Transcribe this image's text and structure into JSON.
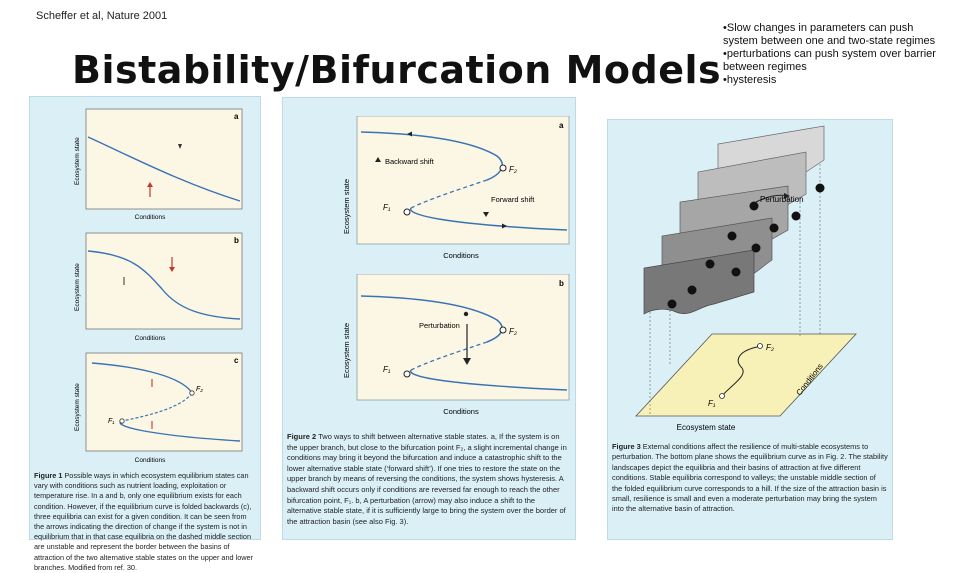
{
  "citation": "Scheffer et al, Nature 2001",
  "title": "Bistability/Bifurcation Models",
  "bullets": [
    "•Slow changes in parameters can push system between one and two-state regimes",
    "•perturbations can push system over barrier between regimes",
    "•hysteresis"
  ],
  "figure1": {
    "panel_a": {
      "letter": "a",
      "ylabel": "Ecosystem state",
      "xlabel": "Conditions"
    },
    "panel_b": {
      "letter": "b",
      "ylabel": "Ecosystem state",
      "xlabel": "Conditions"
    },
    "panel_c": {
      "letter": "c",
      "ylabel": "Ecosystem state",
      "xlabel": "Conditions",
      "f1": "F₁",
      "f2": "F₂"
    },
    "caption_lead": "Figure 1",
    "caption": " Possible ways in which ecosystem equilibrium states can vary with conditions such as nutrient loading, exploitation or temperature rise. In a and b, only one equilibrium exists for each condition. However, if the equilibrium curve is folded backwards (c), three equilibria can exist for a given condition. It can be seen from the arrows indicating the direction of change if the system is not in equilibrium that in that case equilibria on the dashed middle section are unstable and represent the border between the basins of attraction of the two alternative stable states on the upper and lower branches. Modified from ref. 30."
  },
  "figure2": {
    "panel_a": {
      "letter": "a",
      "ylabel": "Ecosystem state",
      "xlabel": "Conditions",
      "backward": "Backward shift",
      "forward": "Forward shift",
      "f1": "F₁",
      "f2": "F₂"
    },
    "panel_b": {
      "letter": "b",
      "ylabel": "Ecosystem state",
      "xlabel": "Conditions",
      "perturbation": "Perturbation",
      "f1": "F₁",
      "f2": "F₂"
    },
    "caption_lead": "Figure 2",
    "caption": " Two ways to shift between alternative stable states. a, If the system is on the upper branch, but close to the bifurcation point F₂, a slight incremental change in conditions may bring it beyond the bifurcation and induce a catastrophic shift to the lower alternative stable state (‘forward shift’). If one tries to restore the state on the upper branch by means of reversing the conditions, the system shows hysteresis. A backward shift occurs only if conditions are reversed far enough to reach the other bifurcation point, F₁. b, A perturbation (arrow) may also induce a shift to the alternative stable state, if it is sufficiently large to bring the system over the border of the attraction basin (see also Fig. 3)."
  },
  "figure3": {
    "perturbation": "Perturbation",
    "conditions": "Conditions",
    "xlabel": "Ecosystem state",
    "f1": "F₁",
    "f2": "F₂",
    "caption_lead": "Figure 3",
    "caption": " External conditions affect the resilience of multi-stable ecosystems to perturbation. The bottom plane shows the equilibrium curve as in Fig. 2. The stability landscapes depict the equilibria and their basins of attraction at five different conditions. Stable equilibria correspond to valleys; the unstable middle section of the folded equilibrium curve corresponds to a hill. If the size of the attraction basin is small, resilience is small and even a moderate perturbation may bring the system into the alternative basin of attraction."
  }
}
